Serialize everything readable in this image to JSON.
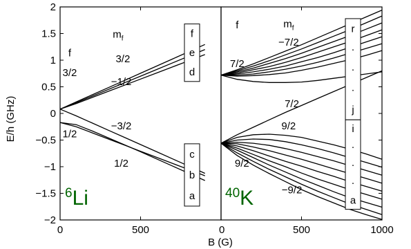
{
  "chart_data": [
    {
      "type": "line",
      "panel": "left",
      "isotope_label": {
        "mass": "6",
        "symbol": "Li",
        "color": "#006400"
      },
      "xlabel": "",
      "ylabel": "E/h (GHz)",
      "xlim": [
        0,
        1000
      ],
      "ylim": [
        -2,
        2
      ],
      "xticks": [
        "0",
        "500"
      ],
      "yticks": [
        "−2",
        "−1.5",
        "−1",
        "−0.5",
        "0",
        "0.5",
        "1",
        "1.5",
        "2"
      ],
      "grid": false,
      "annotations": [
        {
          "text": "f",
          "x": 60,
          "y": 1.07
        },
        {
          "text": "3/2",
          "x": 60,
          "y": 0.7
        },
        {
          "text": "1/2",
          "x": 60,
          "y": -0.45
        },
        {
          "text": "m",
          "sub": "f",
          "x": 360,
          "y": 1.42
        },
        {
          "text": "3/2",
          "x": 390,
          "y": 0.96
        },
        {
          "text": "−1/2",
          "x": 380,
          "y": 0.53
        },
        {
          "text": "−3/2",
          "x": 380,
          "y": -0.3
        },
        {
          "text": "1/2",
          "x": 380,
          "y": -1.0
        }
      ],
      "state_boxes": [
        {
          "labels": [
            "f",
            "e",
            "d"
          ],
          "y_range": [
            0.6,
            1.68
          ]
        },
        {
          "labels": [
            "c",
            "b",
            "a"
          ],
          "y_range": [
            -1.74,
            -0.57
          ]
        }
      ],
      "series": [
        {
          "x": [
            0,
            100,
            200,
            300,
            400,
            500,
            600,
            700,
            800,
            900
          ],
          "y": [
            0.08,
            0.215,
            0.35,
            0.485,
            0.62,
            0.755,
            0.89,
            1.025,
            1.16,
            1.295
          ]
        },
        {
          "x": [
            0,
            100,
            200,
            300,
            400,
            500,
            600,
            700,
            800,
            900
          ],
          "y": [
            0.08,
            0.2,
            0.325,
            0.45,
            0.575,
            0.7,
            0.825,
            0.95,
            1.075,
            1.2
          ]
        },
        {
          "x": [
            0,
            100,
            200,
            300,
            400,
            500,
            600,
            700,
            800,
            900
          ],
          "y": [
            0.08,
            0.185,
            0.3,
            0.415,
            0.53,
            0.645,
            0.76,
            0.875,
            0.99,
            1.105
          ]
        },
        {
          "x": [
            0,
            100,
            200,
            300,
            400,
            500,
            600,
            700,
            800,
            900
          ],
          "y": [
            0.08,
            -0.045,
            -0.18,
            -0.315,
            -0.45,
            -0.585,
            -0.72,
            -0.855,
            -0.99,
            -1.125
          ]
        },
        {
          "x": [
            0,
            100,
            200,
            300,
            400,
            500,
            600,
            700,
            800,
            900
          ],
          "y": [
            -0.17,
            -0.25,
            -0.365,
            -0.48,
            -0.595,
            -0.71,
            -0.825,
            -0.94,
            -1.055,
            -1.17
          ]
        },
        {
          "x": [
            0,
            100,
            200,
            300,
            400,
            500,
            600,
            700,
            800,
            900
          ],
          "y": [
            -0.17,
            -0.21,
            -0.33,
            -0.46,
            -0.59,
            -0.72,
            -0.855,
            -0.99,
            -1.125,
            -1.26
          ]
        }
      ]
    },
    {
      "type": "line",
      "panel": "right",
      "isotope_label": {
        "mass": "40",
        "symbol": "K",
        "color": "#006400"
      },
      "xlabel": "B (G)",
      "ylabel": "",
      "xlim": [
        0,
        1000
      ],
      "ylim": [
        -2,
        2
      ],
      "xticks": [
        "0",
        "500",
        "1000"
      ],
      "grid": false,
      "annotations": [
        {
          "text": "f",
          "x": 100,
          "y": 1.6
        },
        {
          "text": "7/2",
          "x": 100,
          "y": 0.87
        },
        {
          "text": "m",
          "sub": "f",
          "x": 420,
          "y": 1.62
        },
        {
          "text": "−7/2",
          "x": 420,
          "y": 1.27
        },
        {
          "text": "7/2",
          "x": 440,
          "y": 0.12
        },
        {
          "text": "9/2",
          "x": 420,
          "y": -0.3
        },
        {
          "text": "9/2",
          "x": 130,
          "y": -1.0
        },
        {
          "text": "−9/2",
          "x": 440,
          "y": -1.5
        }
      ],
      "state_boxes": [
        {
          "labels": [
            "r",
            "·",
            "·",
            "·",
            "j"
          ],
          "y_range": [
            -0.12,
            1.78
          ]
        },
        {
          "labels": [
            "i",
            "·",
            "·",
            "·",
            "a"
          ],
          "y_range": [
            -1.8,
            -0.12
          ]
        }
      ],
      "series": [
        {
          "x": [
            0,
            100,
            200,
            300,
            400,
            500,
            600,
            700,
            800,
            900,
            1000
          ],
          "y": [
            0.72,
            0.82,
            0.93,
            1.05,
            1.17,
            1.29,
            1.42,
            1.55,
            1.68,
            1.81,
            1.94
          ]
        },
        {
          "x": [
            0,
            100,
            200,
            300,
            400,
            500,
            600,
            700,
            800,
            900,
            1000
          ],
          "y": [
            0.72,
            0.8,
            0.89,
            0.99,
            1.1,
            1.21,
            1.33,
            1.45,
            1.57,
            1.7,
            1.83
          ]
        },
        {
          "x": [
            0,
            100,
            200,
            300,
            400,
            500,
            600,
            700,
            800,
            900,
            1000
          ],
          "y": [
            0.72,
            0.78,
            0.85,
            0.94,
            1.03,
            1.13,
            1.24,
            1.35,
            1.46,
            1.58,
            1.7
          ]
        },
        {
          "x": [
            0,
            100,
            200,
            300,
            400,
            500,
            600,
            700,
            800,
            900,
            1000
          ],
          "y": [
            0.72,
            0.76,
            0.82,
            0.88,
            0.96,
            1.05,
            1.15,
            1.25,
            1.35,
            1.46,
            1.57
          ]
        },
        {
          "x": [
            0,
            100,
            200,
            300,
            400,
            500,
            600,
            700,
            800,
            900,
            1000
          ],
          "y": [
            0.72,
            0.74,
            0.78,
            0.83,
            0.89,
            0.97,
            1.05,
            1.14,
            1.24,
            1.34,
            1.44
          ]
        },
        {
          "x": [
            0,
            100,
            200,
            300,
            400,
            500,
            600,
            700,
            800,
            900,
            1000
          ],
          "y": [
            0.72,
            0.72,
            0.74,
            0.78,
            0.83,
            0.89,
            0.96,
            1.04,
            1.13,
            1.22,
            1.31
          ]
        },
        {
          "x": [
            0,
            100,
            200,
            300,
            400,
            500,
            600,
            700,
            800,
            900,
            1000
          ],
          "y": [
            0.72,
            0.7,
            0.71,
            0.73,
            0.76,
            0.81,
            0.87,
            0.94,
            1.01,
            1.09,
            1.18
          ]
        },
        {
          "x": [
            0,
            100,
            200,
            300,
            400,
            500,
            600,
            700,
            800,
            900,
            1000
          ],
          "y": [
            0.72,
            0.64,
            0.6,
            0.58,
            0.58,
            0.59,
            0.62,
            0.66,
            0.7,
            0.74,
            0.78
          ]
        },
        {
          "x": [
            0,
            100,
            200,
            300,
            400,
            500,
            600,
            700,
            800,
            900,
            1000
          ],
          "y": [
            -0.56,
            -0.4,
            -0.26,
            -0.12,
            0.02,
            0.15,
            0.28,
            0.41,
            0.54,
            0.67,
            0.8
          ]
        },
        {
          "x": [
            0,
            100,
            200,
            300,
            400,
            500,
            600,
            700,
            800,
            900,
            1000
          ],
          "y": [
            -0.56,
            -0.45,
            -0.4,
            -0.39,
            -0.41,
            -0.45,
            -0.52,
            -0.59,
            -0.67,
            -0.76,
            -0.86
          ]
        },
        {
          "x": [
            0,
            100,
            200,
            300,
            400,
            500,
            600,
            700,
            800,
            900,
            1000
          ],
          "y": [
            -0.56,
            -0.5,
            -0.48,
            -0.49,
            -0.53,
            -0.59,
            -0.66,
            -0.74,
            -0.83,
            -0.92,
            -1.01
          ]
        },
        {
          "x": [
            0,
            100,
            200,
            300,
            400,
            500,
            600,
            700,
            800,
            900,
            1000
          ],
          "y": [
            -0.56,
            -0.54,
            -0.56,
            -0.6,
            -0.66,
            -0.73,
            -0.81,
            -0.89,
            -0.98,
            -1.07,
            -1.16
          ]
        },
        {
          "x": [
            0,
            100,
            200,
            300,
            400,
            500,
            600,
            700,
            800,
            900,
            1000
          ],
          "y": [
            -0.56,
            -0.57,
            -0.63,
            -0.7,
            -0.78,
            -0.86,
            -0.95,
            -1.04,
            -1.13,
            -1.22,
            -1.31
          ]
        },
        {
          "x": [
            0,
            100,
            200,
            300,
            400,
            500,
            600,
            700,
            800,
            900,
            1000
          ],
          "y": [
            -0.56,
            -0.61,
            -0.7,
            -0.8,
            -0.9,
            -0.99,
            -1.09,
            -1.18,
            -1.28,
            -1.37,
            -1.46
          ]
        },
        {
          "x": [
            0,
            100,
            200,
            300,
            400,
            500,
            600,
            700,
            800,
            900,
            1000
          ],
          "y": [
            -0.56,
            -0.65,
            -0.77,
            -0.89,
            -1.0,
            -1.12,
            -1.23,
            -1.33,
            -1.43,
            -1.52,
            -1.61
          ]
        },
        {
          "x": [
            0,
            100,
            200,
            300,
            400,
            500,
            600,
            700,
            800,
            900,
            1000
          ],
          "y": [
            -0.56,
            -0.69,
            -0.83,
            -0.97,
            -1.1,
            -1.23,
            -1.35,
            -1.47,
            -1.58,
            -1.67,
            -1.76
          ]
        },
        {
          "x": [
            0,
            100,
            200,
            300,
            400,
            500,
            600,
            700,
            800,
            900,
            1000
          ],
          "y": [
            -0.56,
            -0.74,
            -0.9,
            -1.05,
            -1.19,
            -1.33,
            -1.46,
            -1.58,
            -1.7,
            -1.8,
            -1.9
          ]
        },
        {
          "x": [
            0,
            100,
            200,
            300,
            400,
            500,
            600,
            700,
            800,
            900,
            1000
          ],
          "y": [
            -0.56,
            -0.79,
            -0.97,
            -1.13,
            -1.28,
            -1.43,
            -1.56,
            -1.68,
            -1.8,
            -1.9,
            -1.99
          ]
        }
      ]
    }
  ]
}
